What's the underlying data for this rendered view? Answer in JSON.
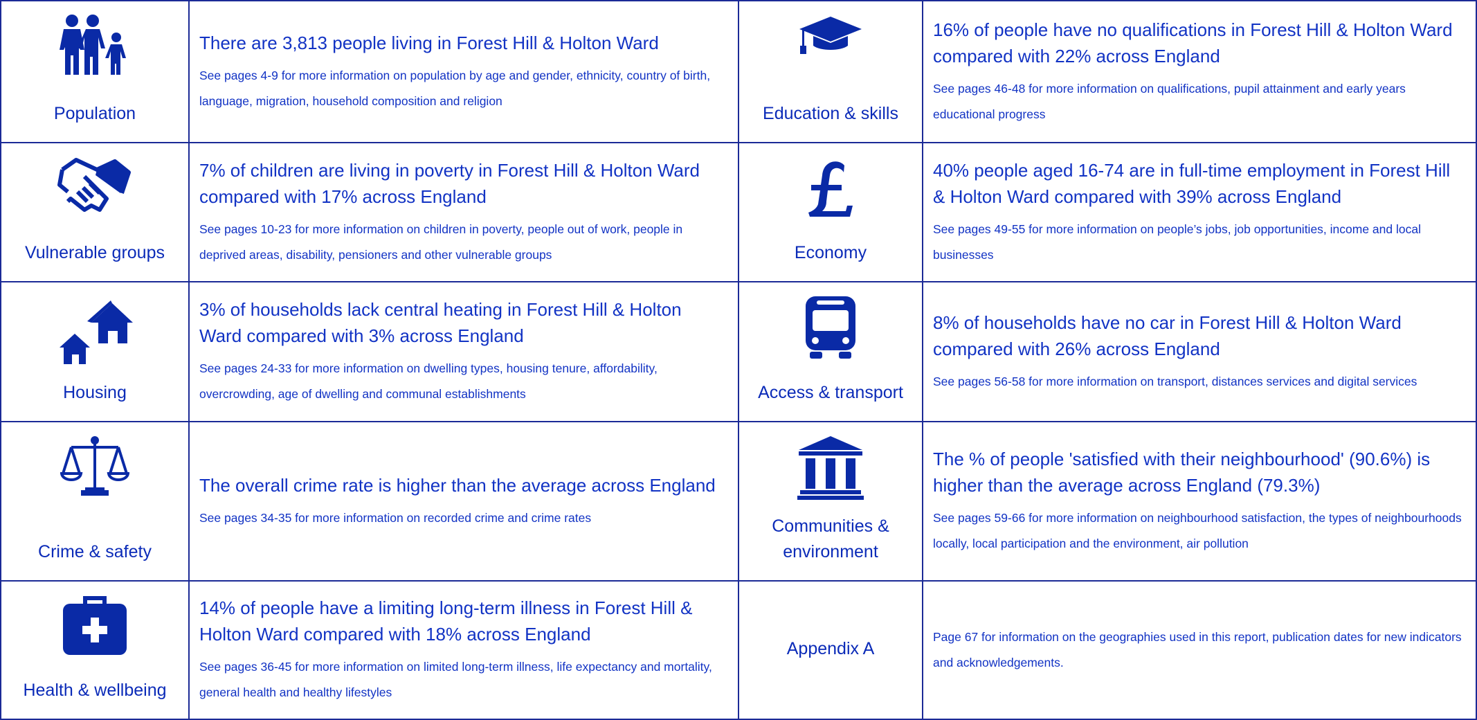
{
  "sections": [
    {
      "label": "Population",
      "headline": "There are 3,813 people living in Forest Hill & Holton Ward",
      "detail": "See pages 4-9 for more information on population by age and gender, ethnicity, country of birth, language, migration, household composition and religion"
    },
    {
      "label": "Education & skills",
      "headline": "16% of people have no qualifications in Forest Hill & Holton Ward compared with 22% across England",
      "detail": "See pages 46-48 for more information on qualifications, pupil attainment and early years educational progress"
    },
    {
      "label": "Vulnerable groups",
      "headline": "7% of children are living in poverty in Forest Hill & Holton Ward compared with 17% across England",
      "detail": "See pages 10-23 for more information on children in poverty, people out of work, people in deprived areas, disability, pensioners and other vulnerable groups"
    },
    {
      "label": "Economy",
      "headline": "40% people aged 16-74 are in full-time employment in Forest Hill & Holton Ward compared with 39% across England",
      "detail": "See pages 49-55 for more information on people’s jobs, job opportunities, income and local businesses"
    },
    {
      "label": "Housing",
      "headline": "3% of households lack central heating in Forest Hill & Holton Ward compared with 3% across England",
      "detail": "See pages 24-33 for more information on dwelling types, housing tenure, affordability, overcrowding, age of dwelling and communal establishments"
    },
    {
      "label": "Access & transport",
      "headline": "8% of households have no car in Forest Hill & Holton Ward compared with 26% across England",
      "detail": "See pages 56-58 for more information on transport, distances services and digital services"
    },
    {
      "label": "Crime & safety",
      "headline": "The overall crime rate is higher than the average across England",
      "detail": "See pages 34-35 for more information on recorded crime and crime rates"
    },
    {
      "label": "Communities & environment",
      "headline": "The % of people 'satisfied with their neighbourhood' (90.6%) is higher than the average across England (79.3%)",
      "detail": "See pages 59-66 for more information on neighbourhood satisfaction, the types of neighbourhoods locally, local participation and the environment, air pollution"
    },
    {
      "label": "Health & wellbeing",
      "headline": "14% of people have a limiting long-term illness in Forest Hill & Holton Ward compared with 18% across England",
      "detail": "See pages 36-45 for more information on limited long-term illness, life expectancy and mortality, general health and healthy lifestyles"
    },
    {
      "label": "Appendix A",
      "detail": "Page 67 for information on the geographies used in this report, publication dates for new indicators and acknowledgements."
    }
  ]
}
